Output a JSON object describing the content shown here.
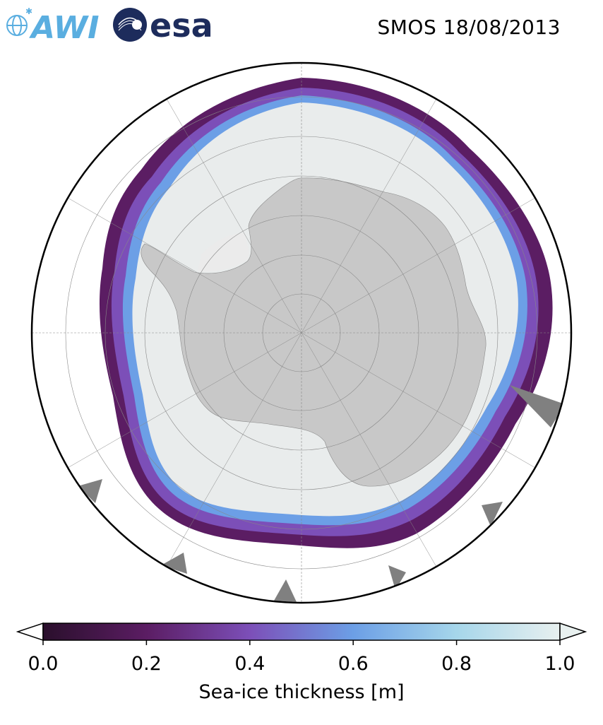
{
  "header": {
    "title": "SMOS 18/08/2013",
    "logos": [
      {
        "name": "awi-logo",
        "text": "AWI",
        "color": "#5aaee0"
      },
      {
        "name": "esa-logo",
        "text": "esa",
        "color": "#1d2c5c"
      }
    ]
  },
  "map": {
    "projection": "south-polar-stereographic",
    "land_color": "#c8c8c8",
    "ice_shelf_color": "#ebebeb",
    "background_ocean_color": "#ffffff",
    "missing_data_color": "#808080",
    "gridlines": true
  },
  "colorbar": {
    "label": "Sea-ice thickness [m]",
    "vmin": 0.0,
    "vmax": 1.0,
    "extend": "both",
    "ticks": [
      "0.0",
      "0.2",
      "0.4",
      "0.6",
      "0.8",
      "1.0"
    ],
    "tick_values": [
      0.0,
      0.2,
      0.4,
      0.6,
      0.8,
      1.0
    ],
    "colormap_stops": [
      "#2a0f2c",
      "#5b1d63",
      "#7c4fb8",
      "#6c9fe6",
      "#a6d6ea",
      "#e8f0ef"
    ]
  }
}
